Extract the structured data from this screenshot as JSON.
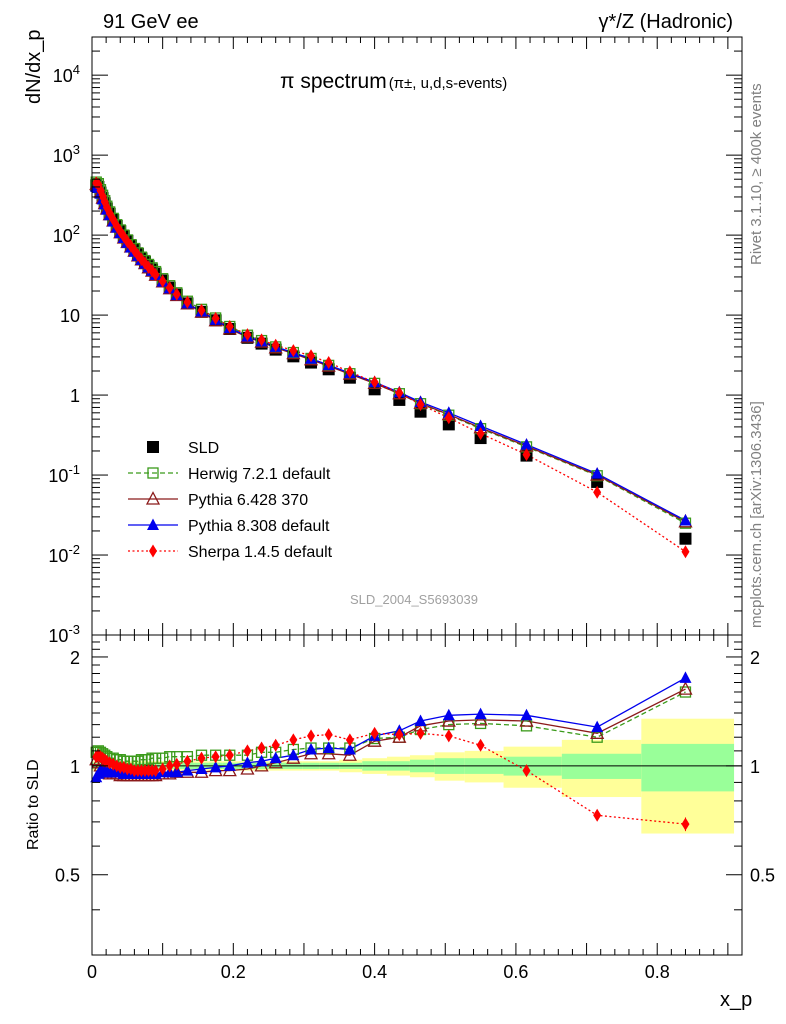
{
  "header": {
    "left": "91 GeV ee",
    "right": "γ*/Z (Hadronic)"
  },
  "side": {
    "rivet": "Rivet 3.1.10, ≥ 400k events",
    "mcplots": "mcplots.cern.ch [arXiv:1306.3436]"
  },
  "chart_data": {
    "type": "line",
    "title": "π spectrum",
    "subtitle": "(π±, u,d,s-events)",
    "watermark": "SLD_2004_S5693039",
    "xlabel": "x_p",
    "ylabel": "dN/dx_p",
    "ratio_ylabel": "Ratio to SLD",
    "xlim": [
      0,
      0.92
    ],
    "ylim": [
      0.001,
      30000
    ],
    "ratio_ylim": [
      0.3,
      2.3
    ],
    "xscale": "linear",
    "yscale": "log",
    "x_ticks": [
      "0",
      "0.2",
      "0.4",
      "0.6",
      "0.8"
    ],
    "y_ticks": [
      "10^-3",
      "10^-2",
      "10^-1",
      "1",
      "10",
      "10^2",
      "10^3",
      "10^4"
    ],
    "ratio_ticks": [
      "0.5",
      "1",
      "2"
    ],
    "legend_position": "lower-left",
    "x": [
      0.006,
      0.009,
      0.012,
      0.015,
      0.018,
      0.021,
      0.025,
      0.03,
      0.035,
      0.04,
      0.045,
      0.05,
      0.055,
      0.06,
      0.065,
      0.07,
      0.075,
      0.08,
      0.085,
      0.09,
      0.1,
      0.11,
      0.12,
      0.135,
      0.155,
      0.175,
      0.195,
      0.22,
      0.24,
      0.26,
      0.285,
      0.31,
      0.335,
      0.365,
      0.4,
      0.435,
      0.465,
      0.505,
      0.55,
      0.615,
      0.715,
      0.84
    ],
    "series": [
      {
        "name": "SLD",
        "style": "black filled squares",
        "color": "#000000",
        "values": [
          420,
          400,
          340,
          290,
          250,
          215,
          185,
          155,
          130,
          112,
          97,
          85,
          74,
          66,
          58,
          51,
          46,
          41,
          37,
          33,
          27,
          22,
          18,
          14,
          11,
          8.6,
          6.7,
          5.2,
          4.4,
          3.7,
          3.05,
          2.55,
          2.1,
          1.65,
          1.18,
          0.87,
          0.62,
          0.43,
          0.29,
          0.175,
          0.082,
          0.016
        ],
        "ratio": [
          1,
          1,
          1,
          1,
          1,
          1,
          1,
          1,
          1,
          1,
          1,
          1,
          1,
          1,
          1,
          1,
          1,
          1,
          1,
          1,
          1,
          1,
          1,
          1,
          1,
          1,
          1,
          1,
          1,
          1,
          1,
          1,
          1,
          1,
          1,
          1,
          1,
          1,
          1,
          1,
          1,
          1
        ],
        "band_inner": [
          0.02,
          0.02,
          0.02,
          0.02,
          0.02,
          0.02,
          0.02,
          0.02,
          0.02,
          0.02,
          0.02,
          0.02,
          0.02,
          0.02,
          0.02,
          0.02,
          0.02,
          0.02,
          0.02,
          0.02,
          0.02,
          0.02,
          0.02,
          0.02,
          0.02,
          0.02,
          0.02,
          0.02,
          0.02,
          0.02,
          0.02,
          0.02,
          0.02,
          0.02,
          0.03,
          0.03,
          0.04,
          0.05,
          0.05,
          0.06,
          0.08,
          0.15
        ],
        "band_outer": [
          0.03,
          0.03,
          0.03,
          0.03,
          0.03,
          0.03,
          0.03,
          0.03,
          0.03,
          0.03,
          0.03,
          0.03,
          0.03,
          0.03,
          0.03,
          0.03,
          0.03,
          0.03,
          0.03,
          0.03,
          0.03,
          0.03,
          0.03,
          0.03,
          0.03,
          0.03,
          0.03,
          0.03,
          0.03,
          0.03,
          0.03,
          0.03,
          0.03,
          0.04,
          0.05,
          0.06,
          0.07,
          0.09,
          0.1,
          0.13,
          0.18,
          0.35
        ]
      },
      {
        "name": "Herwig 7.2.1 default",
        "style": "green dashed open squares",
        "color": "#3a9a1a",
        "values": [
          460,
          440,
          370,
          315,
          270,
          230,
          195,
          162,
          135,
          116,
          100,
          87,
          76,
          68,
          60,
          53,
          48,
          43,
          39,
          35,
          28.5,
          23.3,
          19,
          14.9,
          11.8,
          9.2,
          7.2,
          5.6,
          4.8,
          4.0,
          3.4,
          2.87,
          2.35,
          1.85,
          1.4,
          1.04,
          0.78,
          0.56,
          0.38,
          0.225,
          0.098,
          0.025
        ],
        "ratio": [
          1.09,
          1.1,
          1.09,
          1.08,
          1.07,
          1.06,
          1.05,
          1.05,
          1.04,
          1.04,
          1.03,
          1.03,
          1.03,
          1.03,
          1.03,
          1.04,
          1.04,
          1.04,
          1.05,
          1.05,
          1.05,
          1.06,
          1.06,
          1.06,
          1.07,
          1.07,
          1.07,
          1.07,
          1.09,
          1.09,
          1.11,
          1.12,
          1.12,
          1.12,
          1.19,
          1.2,
          1.26,
          1.3,
          1.31,
          1.29,
          1.2,
          1.6
        ]
      },
      {
        "name": "Pythia 6.428 370",
        "style": "dark red solid open triangles",
        "color": "#8b1a1a",
        "values": [
          430,
          410,
          345,
          290,
          248,
          212,
          180,
          150,
          126,
          107,
          92,
          81,
          71,
          63,
          55,
          49,
          44,
          39,
          35.5,
          31.5,
          26,
          21.4,
          17.6,
          13.8,
          10.9,
          8.5,
          6.7,
          5.3,
          4.6,
          3.9,
          3.3,
          2.77,
          2.3,
          1.83,
          1.4,
          1.04,
          0.79,
          0.57,
          0.39,
          0.23,
          0.1,
          0.026
        ],
        "ratio": [
          1.04,
          1.02,
          1.0,
          0.98,
          0.97,
          0.96,
          0.95,
          0.95,
          0.95,
          0.94,
          0.94,
          0.94,
          0.94,
          0.94,
          0.94,
          0.94,
          0.94,
          0.94,
          0.94,
          0.94,
          0.95,
          0.95,
          0.96,
          0.96,
          0.96,
          0.97,
          0.97,
          0.98,
          1.0,
          1.02,
          1.05,
          1.08,
          1.08,
          1.07,
          1.17,
          1.2,
          1.29,
          1.33,
          1.34,
          1.33,
          1.23,
          1.63
        ]
      },
      {
        "name": "Pythia 8.308 default",
        "style": "blue solid filled triangles",
        "color": "#0000ee",
        "values": [
          400,
          390,
          330,
          280,
          242,
          208,
          177,
          148,
          124,
          106,
          92,
          80,
          70,
          62,
          55,
          49,
          44,
          39.5,
          35.7,
          31.8,
          26.2,
          21.6,
          17.8,
          14,
          11.1,
          8.7,
          6.9,
          5.4,
          4.7,
          4.0,
          3.4,
          2.85,
          2.37,
          1.88,
          1.45,
          1.08,
          0.82,
          0.6,
          0.41,
          0.24,
          0.104,
          0.027
        ],
        "ratio": [
          0.93,
          0.95,
          0.97,
          0.96,
          0.96,
          0.96,
          0.96,
          0.96,
          0.96,
          0.96,
          0.95,
          0.95,
          0.95,
          0.95,
          0.95,
          0.95,
          0.95,
          0.95,
          0.95,
          0.95,
          0.96,
          0.96,
          0.96,
          0.97,
          0.98,
          0.99,
          1.0,
          1.02,
          1.03,
          1.05,
          1.07,
          1.11,
          1.12,
          1.11,
          1.21,
          1.25,
          1.33,
          1.38,
          1.39,
          1.38,
          1.28,
          1.75
        ]
      },
      {
        "name": "Sherpa 1.4.5 default",
        "style": "red dotted diamonds",
        "color": "#ff0000",
        "values": [
          450,
          430,
          360,
          305,
          260,
          222,
          188,
          157,
          130,
          111,
          96,
          83,
          73,
          64,
          56,
          49.5,
          44.5,
          39.5,
          35.8,
          32,
          26.5,
          22,
          18.2,
          14.5,
          11.5,
          9.1,
          7.2,
          5.7,
          4.9,
          4.2,
          3.6,
          3.1,
          2.55,
          1.95,
          1.45,
          1.06,
          0.76,
          0.52,
          0.33,
          0.18,
          0.061,
          0.011
        ],
        "ratio": [
          1.06,
          1.07,
          1.06,
          1.05,
          1.04,
          1.03,
          1.02,
          1.01,
          1.0,
          0.99,
          0.99,
          0.98,
          0.98,
          0.97,
          0.97,
          0.97,
          0.97,
          0.97,
          0.97,
          0.97,
          0.98,
          1.0,
          1.01,
          1.03,
          1.05,
          1.06,
          1.07,
          1.1,
          1.12,
          1.14,
          1.18,
          1.21,
          1.22,
          1.18,
          1.23,
          1.22,
          1.23,
          1.21,
          1.14,
          0.97,
          0.73,
          0.69
        ],
        "ratio_err": [
          0,
          0,
          0,
          0,
          0,
          0,
          0,
          0,
          0,
          0,
          0,
          0,
          0,
          0,
          0,
          0,
          0,
          0,
          0,
          0,
          0,
          0,
          0,
          0,
          0,
          0,
          0,
          0,
          0,
          0,
          0,
          0,
          0,
          0,
          0,
          0,
          0,
          0,
          0,
          0,
          0.01,
          0.03
        ]
      }
    ]
  }
}
